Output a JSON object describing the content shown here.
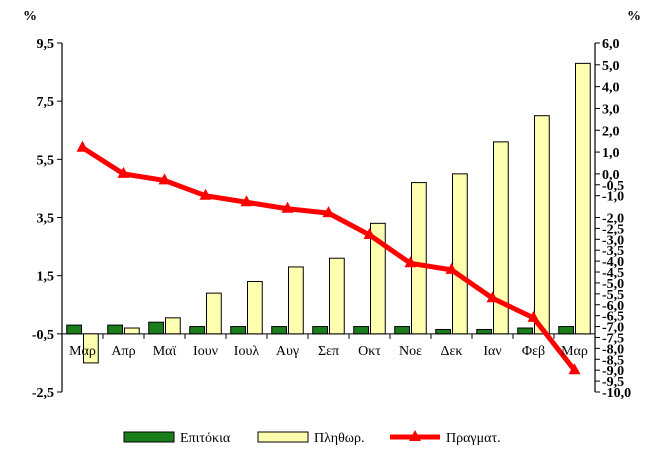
{
  "chart_data": {
    "type": "bar",
    "left_unit": "%",
    "right_unit": "%",
    "categories": [
      "Μαρ",
      "Απρ",
      "Μαϊ",
      "Ιουν",
      "Ιουλ",
      "Αυγ",
      "Σεπ",
      "Οκτ",
      "Νοε",
      "Δεκ",
      "Ιαν",
      "Φεβ",
      "Μαρ"
    ],
    "left_axis": {
      "ylim": [
        -2.5,
        9.5
      ],
      "ticks": [
        "9,5",
        "7,5",
        "5,5",
        "3,5",
        "1,5",
        "-0,5",
        "-2,5"
      ],
      "tick_values": [
        9.5,
        7.5,
        5.5,
        3.5,
        1.5,
        -0.5,
        -2.5
      ]
    },
    "right_axis": {
      "ylim": [
        -10.0,
        6.0
      ],
      "ticks": [
        "6,0",
        "5,0",
        "4,0",
        "3,0",
        "2,0",
        "1,0",
        "0,0",
        "-0,5",
        "-1,0",
        "-2,0",
        "-2,5",
        "-3,0",
        "-3,5",
        "-4,0",
        "-4,5",
        "-5,0",
        "-5,5",
        "-6,0",
        "-6,5",
        "-7,0",
        "-7,5",
        "-8,0",
        "-8,5",
        "-9,0",
        "-9,5",
        "-10,0"
      ],
      "tick_values": [
        6.0,
        5.0,
        4.0,
        3.0,
        2.0,
        1.0,
        0.0,
        -0.5,
        -1.0,
        -2.0,
        -2.5,
        -3.0,
        -3.5,
        -4.0,
        -4.5,
        -5.0,
        -5.5,
        -6.0,
        -6.5,
        -7.0,
        -7.5,
        -8.0,
        -8.5,
        -9.0,
        -9.5,
        -10.0
      ]
    },
    "series": [
      {
        "name": "Επιτόκια",
        "type": "bar",
        "axis": "left",
        "color": "#1a7f1a",
        "values": [
          -0.2,
          -0.2,
          -0.1,
          -0.25,
          -0.25,
          -0.25,
          -0.25,
          -0.25,
          -0.25,
          -0.35,
          -0.35,
          -0.3,
          -0.25
        ]
      },
      {
        "name": "Πληθωρ.",
        "type": "bar",
        "axis": "left",
        "color": "#ffffb0",
        "values": [
          -1.5,
          -0.3,
          0.05,
          0.9,
          1.3,
          1.8,
          2.1,
          3.3,
          4.7,
          5.0,
          6.1,
          7.0,
          8.8
        ]
      },
      {
        "name": "Πραγματ.",
        "type": "line",
        "axis": "right",
        "color": "#ff0000",
        "values": [
          1.2,
          0.0,
          -0.3,
          -1.0,
          -1.3,
          -1.6,
          -1.8,
          -2.8,
          -4.1,
          -4.4,
          -5.7,
          -6.6,
          -9.0
        ]
      }
    ],
    "legend_position": "bottom"
  }
}
